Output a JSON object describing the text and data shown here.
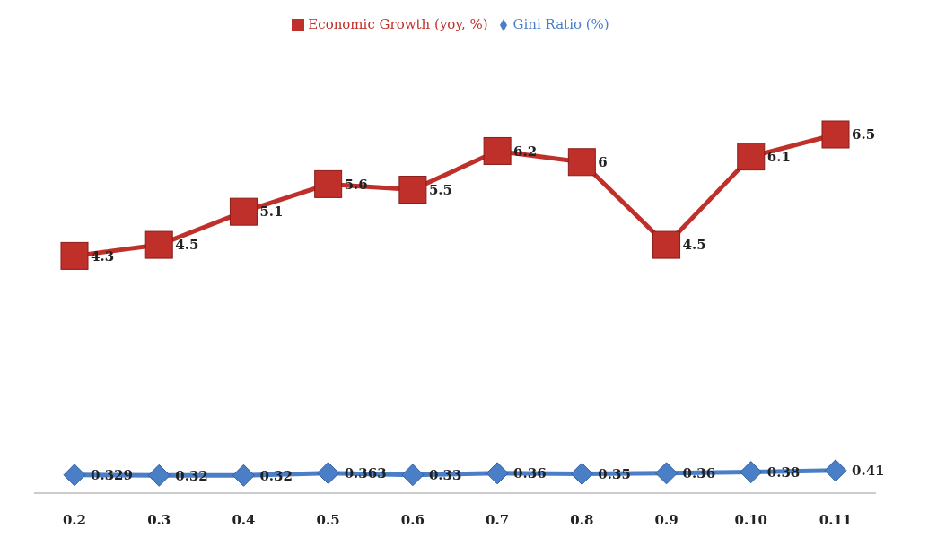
{
  "chart_data": {
    "type": "line",
    "categories": [
      "0.2",
      "0.3",
      "0.4",
      "0.5",
      "0.6",
      "0.7",
      "0.8",
      "0.9",
      "0.10",
      "0.11"
    ],
    "series": [
      {
        "name": "Gini Ratio (%)",
        "color": "#4a7fc7",
        "marker": "diamond",
        "values": [
          0.329,
          0.32,
          0.32,
          0.363,
          0.33,
          0.36,
          0.35,
          0.36,
          0.38,
          0.41
        ]
      },
      {
        "name": "Economic Growth (yoy, %)",
        "color": "#c0302a",
        "marker": "square",
        "values": [
          4.3,
          4.5,
          5.1,
          5.6,
          5.5,
          6.2,
          6,
          4.5,
          6.1,
          6.5
        ]
      }
    ],
    "data_labels": true,
    "legend": "top",
    "grid": false
  }
}
